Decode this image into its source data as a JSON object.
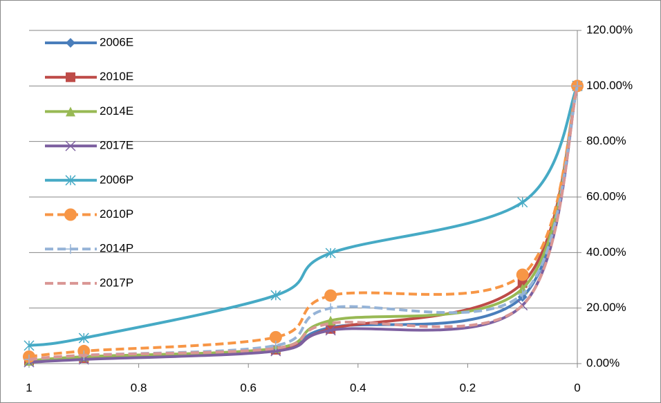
{
  "chart_data": {
    "type": "line",
    "x": [
      1,
      0.9,
      0.55,
      0.45,
      0.1,
      0
    ],
    "xlim": [
      1,
      0
    ],
    "xticks": [
      1,
      0.8,
      0.6,
      0.4,
      0.2,
      0
    ],
    "ylim": [
      0,
      120
    ],
    "yticks": [
      {
        "value": 0,
        "label": "0.00%"
      },
      {
        "value": 20,
        "label": "20.00%"
      },
      {
        "value": 40,
        "label": "40.00%"
      },
      {
        "value": 60,
        "label": "60.00%"
      },
      {
        "value": 80,
        "label": "80.00%"
      },
      {
        "value": 100,
        "label": "100.00%"
      },
      {
        "value": 120,
        "label": "120.00%"
      }
    ],
    "y_axis_side": "right",
    "grid": true,
    "smooth": true,
    "legend": "upper left",
    "series": [
      {
        "name": "2006E",
        "color": "#4a7ebb",
        "marker": "diamond",
        "dash": false,
        "values": [
          1,
          2,
          5,
          13,
          24,
          100
        ]
      },
      {
        "name": "2010E",
        "color": "#be4b48",
        "marker": "square",
        "dash": false,
        "values": [
          1,
          2,
          5,
          12.5,
          29,
          100
        ]
      },
      {
        "name": "2014E",
        "color": "#98b954",
        "marker": "triangle",
        "dash": false,
        "values": [
          1,
          2.5,
          5.5,
          15.5,
          27,
          100
        ]
      },
      {
        "name": "2017E",
        "color": "#7d60a0",
        "marker": "x",
        "dash": false,
        "values": [
          0.5,
          1.5,
          4.5,
          12,
          21,
          100
        ]
      },
      {
        "name": "2006P",
        "color": "#46aac5",
        "marker": "star",
        "dash": false,
        "values": [
          6.5,
          9.2,
          24.6,
          39.8,
          58.1,
          100
        ]
      },
      {
        "name": "2010P",
        "color": "#f79646",
        "marker": "circle",
        "dash": true,
        "values": [
          2.5,
          4.5,
          9.5,
          24.5,
          32,
          100
        ]
      },
      {
        "name": "2014P",
        "color": "#95b3d7",
        "marker": "plus",
        "dash": true,
        "values": [
          1.5,
          3,
          6.5,
          20,
          25,
          100
        ]
      },
      {
        "name": "2017P",
        "color": "#d99694",
        "marker": "none",
        "dash": true,
        "values": [
          1.5,
          3,
          5.5,
          14.5,
          21,
          100
        ]
      }
    ]
  }
}
